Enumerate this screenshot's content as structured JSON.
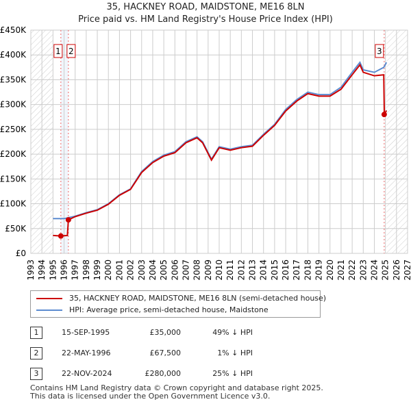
{
  "chart_data": {
    "type": "line",
    "title": "35, HACKNEY ROAD, MAIDSTONE, ME16 8LN",
    "subtitle": "Price paid vs. HM Land Registry's House Price Index (HPI)",
    "xlim": [
      1993,
      2027
    ],
    "ylim": [
      0,
      450000
    ],
    "yticks": [
      "£0",
      "£50K",
      "£100K",
      "£150K",
      "£200K",
      "£250K",
      "£300K",
      "£350K",
      "£400K",
      "£450K"
    ],
    "xticks": [
      "1993",
      "1994",
      "1995",
      "1996",
      "1997",
      "1998",
      "1999",
      "2000",
      "2001",
      "2002",
      "2003",
      "2004",
      "2005",
      "2006",
      "2007",
      "2008",
      "2009",
      "2010",
      "2011",
      "2012",
      "2013",
      "2014",
      "2015",
      "2016",
      "2017",
      "2018",
      "2019",
      "2020",
      "2021",
      "2022",
      "2023",
      "2024",
      "2025",
      "2026",
      "2027"
    ],
    "series": [
      {
        "name": "35, HACKNEY ROAD, MAIDSTONE, ME16 8LN (semi-detached house)",
        "color": "#cc0000",
        "x": [
          1995,
          1995.7,
          1996.3,
          1996.39,
          1997,
          1998,
          1999,
          2000,
          2001,
          2002,
          2003,
          2004,
          2005,
          2006,
          2007,
          2008,
          2008.5,
          2009.3,
          2010,
          2011,
          2012,
          2013,
          2014,
          2015,
          2016,
          2017,
          2018,
          2019,
          2020,
          2021,
          2022,
          2022.7,
          2023,
          2024,
          2024.85,
          2024.9,
          2025.1
        ],
        "y": [
          36000,
          35000,
          36000,
          67500,
          74000,
          81000,
          87000,
          99000,
          117000,
          129000,
          163000,
          183000,
          196000,
          203000,
          223000,
          233000,
          223000,
          188000,
          213000,
          208000,
          213000,
          216000,
          238000,
          258000,
          287000,
          307000,
          322000,
          317000,
          317000,
          331000,
          360000,
          380000,
          365000,
          358000,
          360000,
          280000,
          288000
        ]
      },
      {
        "name": "HPI: Average price, semi-detached house, Maidstone",
        "color": "#5b8bd0",
        "x": [
          1995,
          1996,
          1997,
          1998,
          1999,
          2000,
          2001,
          2002,
          2003,
          2004,
          2005,
          2006,
          2007,
          2008,
          2008.5,
          2009.3,
          2010,
          2011,
          2012,
          2013,
          2014,
          2015,
          2016,
          2017,
          2018,
          2019,
          2020,
          2021,
          2022,
          2022.7,
          2023,
          2024,
          2024.85,
          2025.1
        ],
        "y": [
          70000,
          70000,
          75000,
          82000,
          88000,
          100000,
          118000,
          130000,
          165000,
          185000,
          198000,
          205000,
          225000,
          235000,
          225000,
          190000,
          215000,
          210000,
          215000,
          218000,
          240000,
          260000,
          290000,
          310000,
          325000,
          320000,
          320000,
          335000,
          365000,
          385000,
          370000,
          365000,
          375000,
          385000
        ]
      }
    ],
    "sales": [
      {
        "label": "1",
        "x": 1995.71,
        "y": 35000
      },
      {
        "label": "2",
        "x": 1996.39,
        "y": 67500
      },
      {
        "label": "3",
        "x": 2024.89,
        "y": 280000
      }
    ]
  },
  "legend": [
    "35, HACKNEY ROAD, MAIDSTONE, ME16 8LN (semi-detached house)",
    "HPI: Average price, semi-detached house, Maidstone"
  ],
  "table": [
    {
      "n": "1",
      "date": "15-SEP-1995",
      "price": "£35,000",
      "hpi": "49% ↓ HPI"
    },
    {
      "n": "2",
      "date": "22-MAY-1996",
      "price": "£67,500",
      "hpi": "1% ↓ HPI"
    },
    {
      "n": "3",
      "date": "22-NOV-2024",
      "price": "£280,000",
      "hpi": "25% ↓ HPI"
    }
  ],
  "footer": [
    "Contains HM Land Registry data © Crown copyright and database right 2025.",
    "This data is licensed under the Open Government Licence v3.0."
  ]
}
